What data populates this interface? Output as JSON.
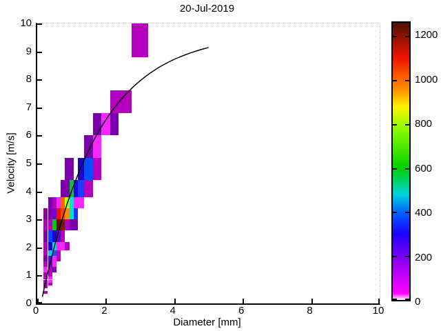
{
  "title": "20-Jul-2019",
  "chart_data": {
    "type": "heatmap",
    "title": "20-Jul-2019",
    "xlabel": "Diameter [mm]",
    "ylabel": "Velocity [m/s]",
    "xlim": [
      0,
      10
    ],
    "ylim": [
      0,
      10
    ],
    "grid": "dotted edge lines at x=10 and y=10 only",
    "x_ticks": [
      0,
      2,
      4,
      6,
      8,
      10
    ],
    "y_ticks": [
      0,
      1,
      2,
      3,
      4,
      5,
      6,
      7,
      8,
      9,
      10
    ],
    "colorbar": {
      "position": "right",
      "min": 0,
      "max": 1260,
      "ticks": [
        0,
        200,
        400,
        600,
        800,
        1000,
        1200
      ],
      "gradient_stops": [
        {
          "value": 0,
          "color": "#FFFFFF"
        },
        {
          "value": 30,
          "color": "#FF00FF"
        },
        {
          "value": 180,
          "color": "#8C00F0"
        },
        {
          "value": 300,
          "color": "#1E00FF"
        },
        {
          "value": 400,
          "color": "#0064FF"
        },
        {
          "value": 480,
          "color": "#00D2DC"
        },
        {
          "value": 600,
          "color": "#00D200"
        },
        {
          "value": 790,
          "color": "#96FF00"
        },
        {
          "value": 880,
          "color": "#FFF000"
        },
        {
          "value": 960,
          "color": "#FF8C00"
        },
        {
          "value": 1100,
          "color": "#F01400"
        },
        {
          "value": 1260,
          "color": "#501000"
        }
      ]
    },
    "curve": {
      "name": "terminal-velocity-model",
      "formula": "v = 9.65 - 10.3 * exp(-0.6 * D)",
      "d_min": 0.1,
      "d_max": 5.0,
      "color": "#000000"
    },
    "cells_format": [
      "d_min_mm",
      "d_max_mm",
      "v_min_ms",
      "v_max_ms",
      "count",
      "color"
    ],
    "cells": [
      [
        0.187,
        0.312,
        0.35,
        0.45,
        40,
        "#B400BE"
      ],
      [
        0.187,
        0.312,
        0.55,
        0.65,
        40,
        "#B400BE"
      ],
      [
        0.187,
        0.312,
        0.65,
        0.75,
        40,
        "#B400BE"
      ],
      [
        0.312,
        0.437,
        0.65,
        0.75,
        40,
        "#B400BE"
      ],
      [
        0.187,
        0.312,
        0.75,
        0.85,
        40,
        "#B400BE"
      ],
      [
        0.312,
        0.437,
        0.75,
        0.85,
        80,
        "#F528FF"
      ],
      [
        0.187,
        0.312,
        0.85,
        0.95,
        40,
        "#B400BE"
      ],
      [
        0.312,
        0.437,
        0.85,
        0.95,
        80,
        "#F528FF"
      ],
      [
        0.187,
        0.312,
        0.95,
        1.1,
        40,
        "#B400BE"
      ],
      [
        0.312,
        0.437,
        0.95,
        1.1,
        40,
        "#B400BE"
      ],
      [
        0.187,
        0.312,
        1.1,
        1.3,
        80,
        "#F528FF"
      ],
      [
        0.312,
        0.437,
        1.1,
        1.3,
        40,
        "#B400BE"
      ],
      [
        0.437,
        0.562,
        1.1,
        1.3,
        130,
        "#7A00AA"
      ],
      [
        0.187,
        0.312,
        1.3,
        1.5,
        40,
        "#B400BE"
      ],
      [
        0.312,
        0.437,
        1.3,
        1.5,
        130,
        "#7A00AA"
      ],
      [
        0.437,
        0.562,
        1.3,
        1.5,
        80,
        "#F528FF"
      ],
      [
        0.187,
        0.312,
        1.5,
        1.7,
        130,
        "#7A00AA"
      ],
      [
        0.312,
        0.437,
        1.5,
        1.7,
        190,
        "#6400DC"
      ],
      [
        0.437,
        0.562,
        1.5,
        1.7,
        80,
        "#F528FF"
      ],
      [
        0.562,
        0.687,
        1.5,
        1.7,
        40,
        "#B400BE"
      ],
      [
        0.187,
        0.312,
        1.7,
        1.9,
        40,
        "#B400BE"
      ],
      [
        0.312,
        0.437,
        1.7,
        1.9,
        470,
        "#00C8E6"
      ],
      [
        0.437,
        0.562,
        1.7,
        1.9,
        330,
        "#1E50FF"
      ],
      [
        0.562,
        0.687,
        1.7,
        1.9,
        40,
        "#B400BE"
      ],
      [
        0.187,
        0.312,
        1.9,
        2.2,
        40,
        "#B400BE"
      ],
      [
        0.312,
        0.437,
        1.9,
        2.2,
        260,
        "#1400C8"
      ],
      [
        0.437,
        0.562,
        1.9,
        2.2,
        470,
        "#00DCE6"
      ],
      [
        0.562,
        0.687,
        1.9,
        2.2,
        80,
        "#F528FF"
      ],
      [
        0.687,
        0.812,
        1.9,
        2.2,
        80,
        "#F528FF"
      ],
      [
        0.812,
        0.937,
        1.9,
        2.2,
        40,
        "#B400BE"
      ],
      [
        0.187,
        0.312,
        2.2,
        2.6,
        130,
        "#7A00AA"
      ],
      [
        0.312,
        0.437,
        2.2,
        2.6,
        330,
        "#0046FF"
      ],
      [
        0.437,
        0.562,
        2.2,
        2.6,
        260,
        "#2300D2"
      ],
      [
        0.562,
        0.687,
        2.2,
        2.6,
        190,
        "#5A00C8"
      ],
      [
        0.687,
        0.812,
        2.2,
        2.6,
        40,
        "#B400BE"
      ],
      [
        0.187,
        0.312,
        2.6,
        3.0,
        40,
        "#B400BE"
      ],
      [
        0.312,
        0.437,
        2.6,
        3.0,
        40,
        "#B400BE"
      ],
      [
        0.437,
        0.562,
        2.6,
        3.0,
        620,
        "#00C814"
      ],
      [
        0.562,
        0.687,
        2.6,
        3.0,
        1250,
        "#5A1400"
      ],
      [
        0.687,
        0.812,
        2.6,
        3.0,
        1230,
        "#6E1E00"
      ],
      [
        0.812,
        0.937,
        2.6,
        3.0,
        40,
        "#B400BE"
      ],
      [
        0.937,
        1.062,
        2.6,
        3.0,
        130,
        "#7A00AA"
      ],
      [
        1.062,
        1.187,
        2.6,
        3.0,
        130,
        "#7A00AA"
      ],
      [
        0.187,
        0.312,
        3.0,
        3.4,
        20,
        "#8C0096"
      ],
      [
        0.312,
        0.437,
        3.0,
        3.4,
        130,
        "#7A00AA"
      ],
      [
        0.437,
        0.562,
        3.0,
        3.4,
        190,
        "#7800DC"
      ],
      [
        0.562,
        0.687,
        3.0,
        3.4,
        1100,
        "#E61400"
      ],
      [
        0.687,
        0.812,
        3.0,
        3.4,
        1000,
        "#FF4600"
      ],
      [
        0.812,
        0.937,
        3.0,
        3.4,
        900,
        "#FF8C00"
      ],
      [
        0.937,
        1.062,
        3.0,
        3.4,
        470,
        "#00DCDC"
      ],
      [
        1.062,
        1.187,
        3.0,
        3.4,
        330,
        "#1E32FF"
      ],
      [
        0.312,
        0.437,
        3.4,
        3.8,
        130,
        "#7A00AA"
      ],
      [
        0.437,
        0.562,
        3.4,
        3.8,
        40,
        "#B400BE"
      ],
      [
        0.562,
        0.687,
        3.4,
        3.8,
        80,
        "#F528FF"
      ],
      [
        0.687,
        0.812,
        3.4,
        3.8,
        950,
        "#FF6400"
      ],
      [
        0.812,
        0.937,
        3.4,
        3.8,
        790,
        "#B4FF00"
      ],
      [
        0.937,
        1.062,
        3.4,
        3.8,
        470,
        "#00E1E1"
      ],
      [
        1.062,
        1.187,
        3.4,
        3.8,
        80,
        "#F528FF"
      ],
      [
        1.187,
        1.375,
        3.4,
        3.8,
        80,
        "#F528FF"
      ],
      [
        0.687,
        0.812,
        3.8,
        4.4,
        130,
        "#7A00AA"
      ],
      [
        0.812,
        0.937,
        3.8,
        4.4,
        130,
        "#7A00AA"
      ],
      [
        0.937,
        1.062,
        3.8,
        4.4,
        620,
        "#00C832"
      ],
      [
        1.062,
        1.187,
        3.8,
        4.4,
        260,
        "#1E00E6"
      ],
      [
        1.187,
        1.375,
        3.8,
        4.4,
        330,
        "#1E3CFF"
      ],
      [
        1.375,
        1.625,
        3.8,
        4.4,
        40,
        "#B400BE"
      ],
      [
        0.812,
        0.937,
        4.4,
        5.2,
        130,
        "#7A00AA"
      ],
      [
        0.937,
        1.062,
        4.4,
        5.2,
        130,
        "#7A00AA"
      ],
      [
        1.187,
        1.375,
        4.4,
        5.2,
        260,
        "#1E00C8"
      ],
      [
        1.375,
        1.625,
        4.4,
        5.2,
        380,
        "#0050FF"
      ],
      [
        1.625,
        1.875,
        4.4,
        5.2,
        40,
        "#B400BE"
      ],
      [
        1.375,
        1.625,
        5.2,
        6.0,
        130,
        "#7A00AA"
      ],
      [
        1.625,
        1.875,
        5.2,
        6.0,
        80,
        "#F528FF"
      ],
      [
        1.625,
        1.875,
        6.0,
        6.8,
        130,
        "#7A00AA"
      ],
      [
        1.875,
        2.125,
        6.0,
        6.8,
        80,
        "#F528FF"
      ],
      [
        2.125,
        2.375,
        6.0,
        6.8,
        130,
        "#7A00AA"
      ],
      [
        2.125,
        2.375,
        6.8,
        7.6,
        40,
        "#B400BE"
      ],
      [
        2.375,
        2.75,
        6.8,
        7.6,
        40,
        "#B400BE"
      ],
      [
        2.75,
        3.25,
        8.8,
        10.4,
        40,
        "#B400BE"
      ]
    ]
  }
}
